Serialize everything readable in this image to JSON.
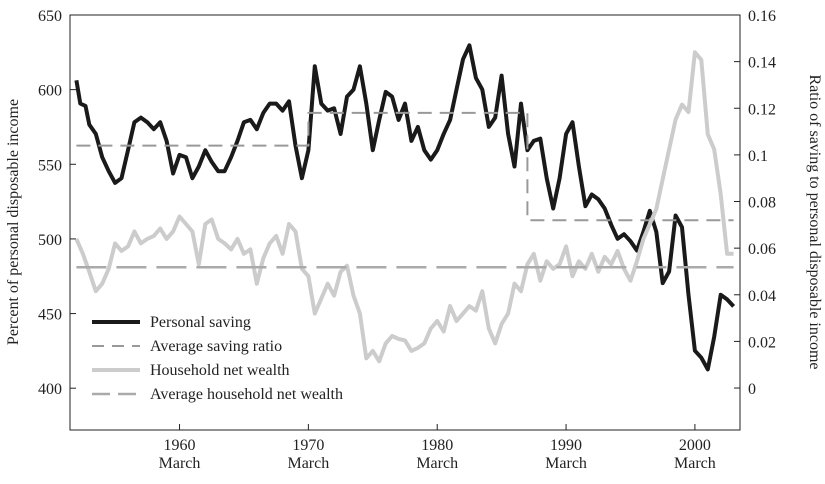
{
  "chart_data": {
    "type": "line",
    "ylabel": "Percent of personal disposable income",
    "y2label": "Ratio of saving to personal disposable income",
    "xlim": [
      1951.5,
      2003.5
    ],
    "xticks": [
      {
        "value": 1960,
        "label": "1960\nMarch"
      },
      {
        "value": 1970,
        "label": "1970\nMarch"
      },
      {
        "value": 1980,
        "label": "1980\nMarch"
      },
      {
        "value": 1990,
        "label": "1990\nMarch"
      },
      {
        "value": 2000,
        "label": "2000\nMarch"
      }
    ],
    "ylim": [
      372,
      650
    ],
    "yticks": [
      400,
      450,
      500,
      550,
      600,
      650
    ],
    "y2lim": [
      -0.018,
      0.16
    ],
    "y2ticks": [
      0,
      0.02,
      0.04,
      0.06,
      0.08,
      0.1,
      0.12,
      0.14,
      0.16
    ],
    "legend": "lower-left",
    "series": [
      {
        "name": "Personal saving",
        "color": "#1a1a1a",
        "style": "solid",
        "axis": "y2",
        "x": [
          1952,
          1952.3,
          1952.7,
          1953,
          1953.5,
          1954,
          1954.5,
          1955,
          1955.5,
          1956,
          1956.5,
          1957,
          1957.5,
          1958,
          1958.5,
          1959,
          1959.5,
          1960,
          1960.5,
          1961,
          1961.5,
          1962,
          1962.5,
          1963,
          1963.5,
          1964,
          1964.5,
          1965,
          1965.5,
          1966,
          1966.5,
          1967,
          1967.5,
          1968,
          1968.5,
          1969,
          1969.5,
          1970,
          1970.5,
          1971,
          1971.5,
          1972,
          1972.5,
          1973,
          1973.5,
          1974,
          1974.5,
          1975,
          1975.5,
          1976,
          1976.5,
          1977,
          1977.5,
          1978,
          1978.5,
          1979,
          1979.5,
          1980,
          1980.5,
          1981,
          1981.5,
          1982,
          1982.5,
          1983,
          1983.5,
          1984,
          1984.5,
          1985,
          1985.5,
          1986,
          1986.5,
          1987,
          1987.5,
          1988,
          1988.5,
          1989,
          1989.5,
          1990,
          1990.5,
          1991,
          1991.5,
          1992,
          1992.5,
          1993,
          1993.5,
          1994,
          1994.5,
          1995,
          1995.5,
          1996,
          1996.5,
          1997,
          1997.5,
          1998,
          1998.5,
          1999,
          1999.5,
          2000,
          2000.5,
          2001,
          2001.5,
          2002,
          2002.5,
          2003
        ],
        "values": [
          0.132,
          0.122,
          0.121,
          0.113,
          0.109,
          0.099,
          0.093,
          0.088,
          0.09,
          0.102,
          0.114,
          0.116,
          0.114,
          0.111,
          0.114,
          0.106,
          0.092,
          0.1,
          0.099,
          0.09,
          0.095,
          0.102,
          0.097,
          0.093,
          0.093,
          0.099,
          0.106,
          0.114,
          0.115,
          0.111,
          0.118,
          0.122,
          0.122,
          0.119,
          0.123,
          0.104,
          0.09,
          0.102,
          0.138,
          0.122,
          0.119,
          0.12,
          0.109,
          0.125,
          0.128,
          0.138,
          0.122,
          0.102,
          0.115,
          0.127,
          0.125,
          0.115,
          0.122,
          0.106,
          0.112,
          0.102,
          0.098,
          0.102,
          0.109,
          0.115,
          0.128,
          0.141,
          0.147,
          0.133,
          0.128,
          0.112,
          0.116,
          0.134,
          0.109,
          0.095,
          0.122,
          0.102,
          0.106,
          0.107,
          0.09,
          0.077,
          0.09,
          0.109,
          0.114,
          0.095,
          0.078,
          0.083,
          0.081,
          0.077,
          0.07,
          0.064,
          0.066,
          0.063,
          0.059,
          0.067,
          0.076,
          0.067,
          0.045,
          0.05,
          0.074,
          0.069,
          0.04,
          0.016,
          0.013,
          0.008,
          0.022,
          0.04,
          0.038,
          0.035
        ]
      },
      {
        "name": "Average saving ratio",
        "color": "#999999",
        "style": "dashed",
        "axis": "y2",
        "x": [
          1952,
          1970,
          1970,
          1987,
          1987,
          2003
        ],
        "values": [
          0.104,
          0.104,
          0.118,
          0.118,
          0.072,
          0.072
        ]
      },
      {
        "name": "Household net wealth",
        "color": "#cccccc",
        "style": "solid",
        "x": [
          1952,
          1952.5,
          1953,
          1953.5,
          1954,
          1954.5,
          1955,
          1955.5,
          1956,
          1956.5,
          1957,
          1957.5,
          1958,
          1958.5,
          1959,
          1959.5,
          1960,
          1960.5,
          1961,
          1961.5,
          1962,
          1962.5,
          1963,
          1963.5,
          1964,
          1964.5,
          1965,
          1965.5,
          1966,
          1966.5,
          1967,
          1967.5,
          1968,
          1968.5,
          1969,
          1969.5,
          1970,
          1970.5,
          1971,
          1971.5,
          1972,
          1972.5,
          1973,
          1973.5,
          1974,
          1974.5,
          1975,
          1975.5,
          1976,
          1976.5,
          1977,
          1977.5,
          1978,
          1978.5,
          1979,
          1979.5,
          1980,
          1980.5,
          1981,
          1981.5,
          1982,
          1982.5,
          1983,
          1983.5,
          1984,
          1984.5,
          1985,
          1985.5,
          1986,
          1986.5,
          1987,
          1987.5,
          1988,
          1988.5,
          1989,
          1989.5,
          1990,
          1990.5,
          1991,
          1991.5,
          1992,
          1992.5,
          1993,
          1993.5,
          1994,
          1994.5,
          1995,
          1995.5,
          1996,
          1996.5,
          1997,
          1997.5,
          1998,
          1998.5,
          1999,
          1999.5,
          2000,
          2000.5,
          2001,
          2001.5,
          2002,
          2002.5,
          2003
        ],
        "values": [
          500,
          490,
          478,
          465,
          470,
          480,
          497,
          492,
          495,
          505,
          497,
          500,
          502,
          507,
          500,
          505,
          515,
          510,
          505,
          483,
          510,
          513,
          500,
          497,
          493,
          500,
          490,
          493,
          470,
          487,
          497,
          502,
          490,
          510,
          505,
          480,
          475,
          450,
          460,
          470,
          462,
          478,
          482,
          462,
          450,
          420,
          425,
          418,
          430,
          435,
          433,
          432,
          425,
          427,
          430,
          440,
          445,
          438,
          455,
          445,
          450,
          455,
          452,
          465,
          440,
          430,
          443,
          450,
          470,
          465,
          483,
          490,
          472,
          485,
          480,
          483,
          495,
          475,
          485,
          480,
          490,
          478,
          488,
          483,
          492,
          480,
          472,
          485,
          500,
          510,
          520,
          540,
          560,
          580,
          590,
          585,
          625,
          620,
          570,
          560,
          530,
          490,
          490
        ]
      },
      {
        "name": "Average household net wealth",
        "color": "#aaaaaa",
        "style": "longdash",
        "x": [
          1952,
          2003
        ],
        "values": [
          481,
          481
        ]
      }
    ]
  }
}
